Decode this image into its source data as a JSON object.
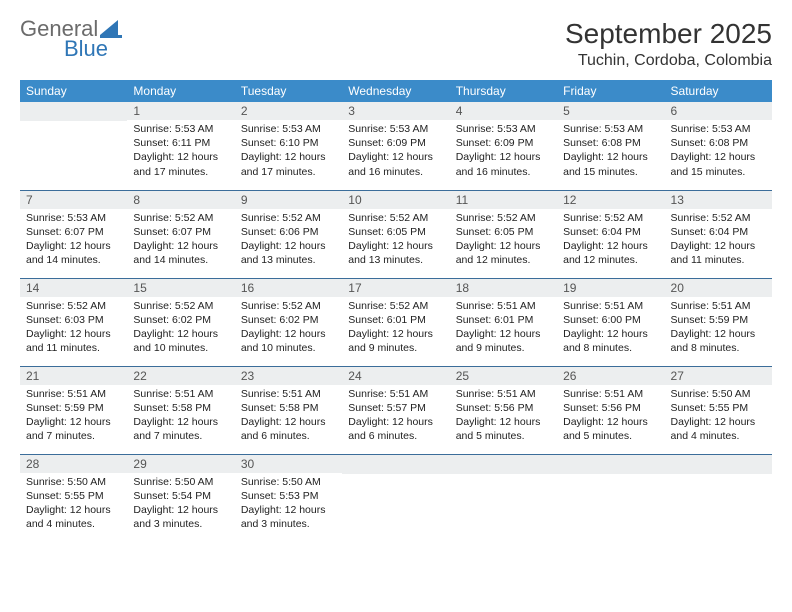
{
  "logo": {
    "general": "General",
    "blue": "Blue"
  },
  "title": "September 2025",
  "location": "Tuchin, Cordoba, Colombia",
  "colors": {
    "header_bg": "#3b8bc9",
    "header_fg": "#ffffff",
    "row_divider": "#3b6d9a",
    "daynum_bg": "#eceeef",
    "logo_gray": "#6b6b6b",
    "logo_blue": "#2f76b6"
  },
  "weekdays": [
    "Sunday",
    "Monday",
    "Tuesday",
    "Wednesday",
    "Thursday",
    "Friday",
    "Saturday"
  ],
  "weeks": [
    [
      {
        "empty": true
      },
      {
        "n": "1",
        "sr": "5:53 AM",
        "ss": "6:11 PM",
        "dl": "12 hours and 17 minutes."
      },
      {
        "n": "2",
        "sr": "5:53 AM",
        "ss": "6:10 PM",
        "dl": "12 hours and 17 minutes."
      },
      {
        "n": "3",
        "sr": "5:53 AM",
        "ss": "6:09 PM",
        "dl": "12 hours and 16 minutes."
      },
      {
        "n": "4",
        "sr": "5:53 AM",
        "ss": "6:09 PM",
        "dl": "12 hours and 16 minutes."
      },
      {
        "n": "5",
        "sr": "5:53 AM",
        "ss": "6:08 PM",
        "dl": "12 hours and 15 minutes."
      },
      {
        "n": "6",
        "sr": "5:53 AM",
        "ss": "6:08 PM",
        "dl": "12 hours and 15 minutes."
      }
    ],
    [
      {
        "n": "7",
        "sr": "5:53 AM",
        "ss": "6:07 PM",
        "dl": "12 hours and 14 minutes."
      },
      {
        "n": "8",
        "sr": "5:52 AM",
        "ss": "6:07 PM",
        "dl": "12 hours and 14 minutes."
      },
      {
        "n": "9",
        "sr": "5:52 AM",
        "ss": "6:06 PM",
        "dl": "12 hours and 13 minutes."
      },
      {
        "n": "10",
        "sr": "5:52 AM",
        "ss": "6:05 PM",
        "dl": "12 hours and 13 minutes."
      },
      {
        "n": "11",
        "sr": "5:52 AM",
        "ss": "6:05 PM",
        "dl": "12 hours and 12 minutes."
      },
      {
        "n": "12",
        "sr": "5:52 AM",
        "ss": "6:04 PM",
        "dl": "12 hours and 12 minutes."
      },
      {
        "n": "13",
        "sr": "5:52 AM",
        "ss": "6:04 PM",
        "dl": "12 hours and 11 minutes."
      }
    ],
    [
      {
        "n": "14",
        "sr": "5:52 AM",
        "ss": "6:03 PM",
        "dl": "12 hours and 11 minutes."
      },
      {
        "n": "15",
        "sr": "5:52 AM",
        "ss": "6:02 PM",
        "dl": "12 hours and 10 minutes."
      },
      {
        "n": "16",
        "sr": "5:52 AM",
        "ss": "6:02 PM",
        "dl": "12 hours and 10 minutes."
      },
      {
        "n": "17",
        "sr": "5:52 AM",
        "ss": "6:01 PM",
        "dl": "12 hours and 9 minutes."
      },
      {
        "n": "18",
        "sr": "5:51 AM",
        "ss": "6:01 PM",
        "dl": "12 hours and 9 minutes."
      },
      {
        "n": "19",
        "sr": "5:51 AM",
        "ss": "6:00 PM",
        "dl": "12 hours and 8 minutes."
      },
      {
        "n": "20",
        "sr": "5:51 AM",
        "ss": "5:59 PM",
        "dl": "12 hours and 8 minutes."
      }
    ],
    [
      {
        "n": "21",
        "sr": "5:51 AM",
        "ss": "5:59 PM",
        "dl": "12 hours and 7 minutes."
      },
      {
        "n": "22",
        "sr": "5:51 AM",
        "ss": "5:58 PM",
        "dl": "12 hours and 7 minutes."
      },
      {
        "n": "23",
        "sr": "5:51 AM",
        "ss": "5:58 PM",
        "dl": "12 hours and 6 minutes."
      },
      {
        "n": "24",
        "sr": "5:51 AM",
        "ss": "5:57 PM",
        "dl": "12 hours and 6 minutes."
      },
      {
        "n": "25",
        "sr": "5:51 AM",
        "ss": "5:56 PM",
        "dl": "12 hours and 5 minutes."
      },
      {
        "n": "26",
        "sr": "5:51 AM",
        "ss": "5:56 PM",
        "dl": "12 hours and 5 minutes."
      },
      {
        "n": "27",
        "sr": "5:50 AM",
        "ss": "5:55 PM",
        "dl": "12 hours and 4 minutes."
      }
    ],
    [
      {
        "n": "28",
        "sr": "5:50 AM",
        "ss": "5:55 PM",
        "dl": "12 hours and 4 minutes."
      },
      {
        "n": "29",
        "sr": "5:50 AM",
        "ss": "5:54 PM",
        "dl": "12 hours and 3 minutes."
      },
      {
        "n": "30",
        "sr": "5:50 AM",
        "ss": "5:53 PM",
        "dl": "12 hours and 3 minutes."
      },
      {
        "empty": true
      },
      {
        "empty": true
      },
      {
        "empty": true
      },
      {
        "empty": true
      }
    ]
  ],
  "labels": {
    "sunrise": "Sunrise:",
    "sunset": "Sunset:",
    "daylight": "Daylight:"
  }
}
